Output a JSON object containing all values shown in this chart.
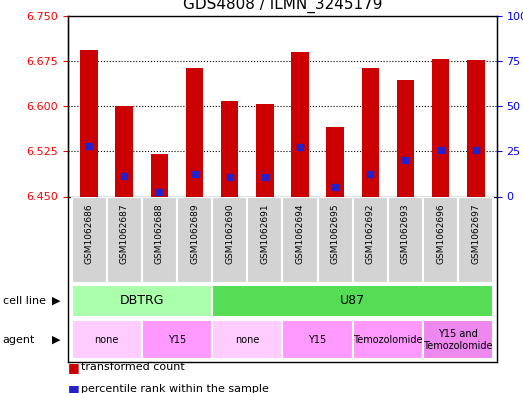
{
  "title": "GDS4808 / ILMN_3245179",
  "samples": [
    "GSM1062686",
    "GSM1062687",
    "GSM1062688",
    "GSM1062689",
    "GSM1062690",
    "GSM1062691",
    "GSM1062694",
    "GSM1062695",
    "GSM1062692",
    "GSM1062693",
    "GSM1062696",
    "GSM1062697"
  ],
  "bar_tops": [
    6.693,
    6.6,
    6.52,
    6.663,
    6.608,
    6.603,
    6.69,
    6.565,
    6.663,
    6.643,
    6.678,
    6.677
  ],
  "blue_vals": [
    6.533,
    6.484,
    6.457,
    6.487,
    6.483,
    6.483,
    6.532,
    6.465,
    6.487,
    6.511,
    6.527,
    6.527
  ],
  "ymin": 6.45,
  "ymax": 6.75,
  "yticks_left": [
    6.45,
    6.525,
    6.6,
    6.675,
    6.75
  ],
  "yticks_right": [
    0,
    25,
    50,
    75,
    100
  ],
  "ytick_labels_right": [
    "0",
    "25",
    "50",
    "75",
    "100%"
  ],
  "bar_color": "#cc0000",
  "blue_color": "#2222cc",
  "bar_width": 0.5,
  "plot_bg": "#ffffff",
  "label_bg": "#d3d3d3",
  "cell_lines": [
    {
      "label": "DBTRG",
      "start": 0,
      "end": 3,
      "color": "#aaffaa"
    },
    {
      "label": "U87",
      "start": 4,
      "end": 11,
      "color": "#55dd55"
    }
  ],
  "agents": [
    {
      "label": "none",
      "start": 0,
      "end": 1,
      "color": "#ffccff"
    },
    {
      "label": "Y15",
      "start": 2,
      "end": 3,
      "color": "#ff99ff"
    },
    {
      "label": "none",
      "start": 4,
      "end": 5,
      "color": "#ffccff"
    },
    {
      "label": "Y15",
      "start": 6,
      "end": 7,
      "color": "#ff99ff"
    },
    {
      "label": "Temozolomide",
      "start": 8,
      "end": 9,
      "color": "#ff99ff"
    },
    {
      "label": "Y15 and\nTemozolomide",
      "start": 10,
      "end": 11,
      "color": "#ee88ee"
    }
  ],
  "legend_red_label": "transformed count",
  "legend_blue_label": "percentile rank within the sample",
  "cell_line_label": "cell line",
  "agent_label": "agent"
}
